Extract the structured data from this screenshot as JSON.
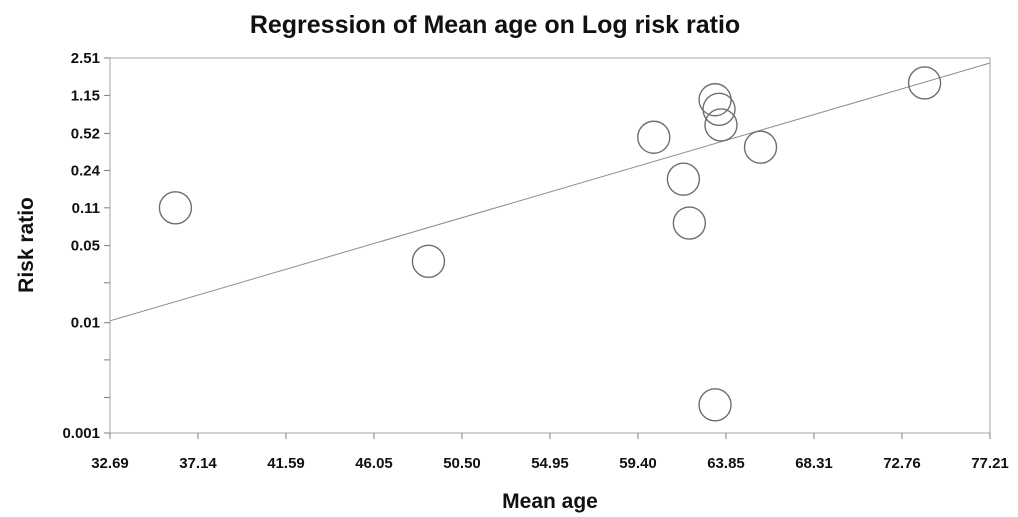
{
  "chart_data": {
    "type": "scatter",
    "title": "Regression of Mean age on Log risk ratio",
    "xlabel": "Mean age",
    "ylabel": "Risk ratio",
    "xlim": [
      32.69,
      77.21
    ],
    "ylim": [
      0.001,
      2.51
    ],
    "yscale": "log",
    "x_ticks": [
      "32.69",
      "37.14",
      "41.59",
      "46.05",
      "50.50",
      "54.95",
      "59.40",
      "63.85",
      "68.31",
      "72.76",
      "77.21"
    ],
    "y_ticks": [
      {
        "label": "2.51",
        "value": 2.51
      },
      {
        "label": "1.15",
        "value": 1.15
      },
      {
        "label": "0.52",
        "value": 0.52
      },
      {
        "label": "0.24",
        "value": 0.24
      },
      {
        "label": "0.11",
        "value": 0.11
      },
      {
        "label": "0.05",
        "value": 0.05
      },
      {
        "label": "",
        "value": 0.023
      },
      {
        "label": "0.01",
        "value": 0.01
      },
      {
        "label": "",
        "value": 0.0046
      },
      {
        "label": "",
        "value": 0.0021
      },
      {
        "label": "0.001",
        "value": 0.001
      }
    ],
    "points": [
      {
        "x": 36.0,
        "y": 0.11
      },
      {
        "x": 48.8,
        "y": 0.036
      },
      {
        "x": 60.2,
        "y": 0.48
      },
      {
        "x": 61.7,
        "y": 0.2
      },
      {
        "x": 62.0,
        "y": 0.08
      },
      {
        "x": 63.3,
        "y": 1.05
      },
      {
        "x": 63.5,
        "y": 0.86
      },
      {
        "x": 63.6,
        "y": 0.62
      },
      {
        "x": 63.3,
        "y": 0.0018
      },
      {
        "x": 65.6,
        "y": 0.39
      },
      {
        "x": 73.9,
        "y": 1.49
      }
    ],
    "regression_line": {
      "x": [
        32.69,
        77.21
      ],
      "y": [
        0.0104,
        2.26
      ]
    },
    "grid": false,
    "legend": "none"
  }
}
